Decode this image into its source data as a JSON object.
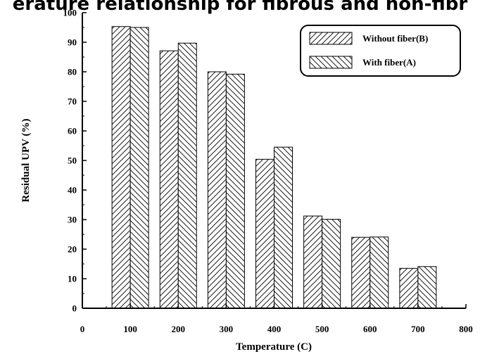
{
  "chart_data": {
    "type": "bar",
    "title": "erature relationship for fibrous and non-fibr",
    "xlabel": "Temperature (C)",
    "ylabel": "Residual UPV (%)",
    "x_ticks": [
      "0",
      "100",
      "200",
      "300",
      "400",
      "500",
      "600",
      "700",
      "800"
    ],
    "y_ticks": [
      "0",
      "10",
      "20",
      "30",
      "40",
      "50",
      "60",
      "70",
      "80",
      "90",
      "100"
    ],
    "xlim": [
      0,
      800
    ],
    "ylim": [
      0,
      100
    ],
    "categories": [
      100,
      200,
      300,
      400,
      500,
      600,
      700
    ],
    "series": [
      {
        "name": "Without fiber(B)",
        "pattern": "forward-hatch",
        "values": [
          95.3,
          87.1,
          80.0,
          50.4,
          31.2,
          24.0,
          13.5
        ]
      },
      {
        "name": "With fiber(A)",
        "pattern": "backward-hatch",
        "values": [
          95.0,
          89.7,
          79.2,
          54.5,
          30.1,
          24.1,
          14.1
        ]
      }
    ],
    "legend_position": "top-right",
    "grid": false
  }
}
